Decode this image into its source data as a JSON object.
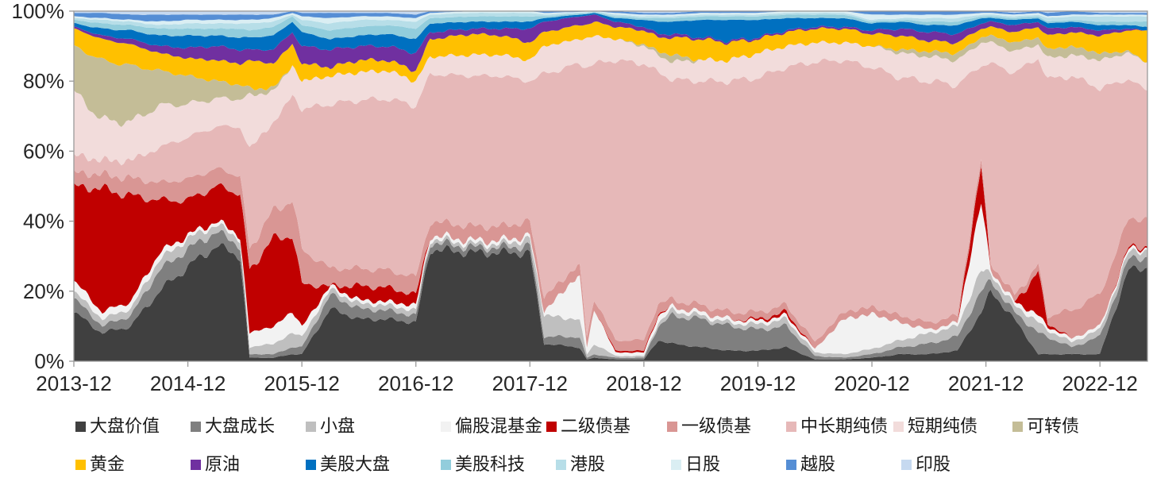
{
  "chart": {
    "y_axis": {
      "ticks": [
        "100%",
        "80%",
        "60%",
        "40%",
        "20%",
        "0%"
      ],
      "min": 0,
      "max": 100
    },
    "x_axis": {
      "ticks": [
        "2013-12",
        "2014-12",
        "2015-12",
        "2016-12",
        "2017-12",
        "2018-12",
        "2019-12",
        "2020-12",
        "2021-12",
        "2022-12"
      ]
    },
    "axis_color": "#9a9a9a",
    "label_color": "#262626"
  },
  "chart_data": {
    "type": "area",
    "stacking": "percent",
    "title": "",
    "xlabel": "",
    "ylabel": "",
    "ylim": [
      0,
      100
    ],
    "y_tick_format": "percent",
    "grid": false,
    "legend_position": "bottom",
    "x_unit": "months since 2013-12",
    "x": [
      0,
      3,
      6,
      9,
      12,
      15,
      17.5,
      18.5,
      21,
      23,
      24,
      27,
      30,
      33,
      36,
      37.5,
      42,
      45,
      48,
      49.5,
      53.2,
      54,
      54.8,
      57,
      60,
      61.5,
      63,
      66,
      69,
      72,
      75,
      78,
      81,
      84,
      87,
      90,
      93,
      95.5,
      96.5,
      99,
      101.5,
      102.5,
      105,
      108,
      111,
      113
    ],
    "x_dates": [
      "2013-12",
      "2014-03",
      "2014-06",
      "2014-09",
      "2014-12",
      "2015-03",
      "2015-05",
      "2015-06",
      "2015-09",
      "2015-11",
      "2015-12",
      "2016-03",
      "2016-06",
      "2016-09",
      "2016-12",
      "2017-01",
      "2017-06",
      "2017-09",
      "2017-12",
      "2018-01",
      "2018-05",
      "2018-06",
      "2018-07",
      "2018-09",
      "2018-12",
      "2019-01",
      "2019-03",
      "2019-06",
      "2019-09",
      "2019-12",
      "2020-03",
      "2020-06",
      "2020-09",
      "2020-12",
      "2021-03",
      "2021-06",
      "2021-09",
      "2021-11",
      "2021-12",
      "2022-03",
      "2022-05",
      "2022-06",
      "2022-09",
      "2022-12",
      "2023-03",
      "2023-05"
    ],
    "series": [
      {
        "name": "大盘价值",
        "color": "#404040",
        "values": [
          14,
          8,
          10,
          20,
          27,
          33,
          30,
          1,
          1,
          2,
          2,
          15,
          12,
          12,
          11,
          32,
          31,
          31,
          31,
          5,
          4,
          0.5,
          1,
          0.5,
          0.5,
          6,
          5,
          4,
          3,
          3,
          4,
          0.5,
          0.5,
          1,
          2,
          2,
          3,
          14,
          20,
          12,
          2,
          2,
          2,
          2,
          26,
          27
        ]
      },
      {
        "name": "大盘成长",
        "color": "#7f7f7f",
        "values": [
          4,
          2,
          3,
          6,
          5,
          4,
          3,
          1,
          1,
          2,
          2,
          4,
          3,
          2.5,
          2,
          2,
          1.5,
          1.5,
          2,
          2,
          3,
          0.5,
          1,
          0.5,
          0.5,
          4,
          8,
          8,
          7,
          6,
          6,
          1,
          0.5,
          1,
          2,
          3,
          4,
          6,
          3,
          2,
          6,
          5,
          2,
          5,
          3,
          3
        ]
      },
      {
        "name": "小盘",
        "color": "#bfbfbf",
        "values": [
          2,
          2,
          2,
          3,
          3,
          2,
          2,
          2,
          3,
          4,
          3,
          1.5,
          1.5,
          1.5,
          1.5,
          1,
          1,
          1,
          2,
          6,
          5,
          1,
          3,
          0.5,
          0.5,
          1,
          1.5,
          1,
          1,
          1.5,
          2,
          1,
          1,
          1.5,
          2,
          3,
          3,
          6,
          2,
          2,
          3,
          2,
          1.5,
          2,
          2,
          2
        ]
      },
      {
        "name": "偏股混基金",
        "color": "#f2f2f2",
        "values": [
          3,
          2,
          2,
          2,
          1,
          1,
          1,
          4,
          5,
          6,
          3,
          1,
          1,
          1,
          1.5,
          1,
          1,
          1,
          1,
          1,
          13,
          2,
          10,
          1,
          1,
          2,
          1,
          1,
          1,
          1,
          1,
          1,
          10,
          10,
          5,
          1,
          1,
          20,
          1,
          1,
          2,
          1,
          1,
          1,
          1,
          0.5
        ]
      },
      {
        "name": "二级债基",
        "color": "#c00000",
        "values": [
          27,
          35,
          30,
          15,
          10,
          10,
          12,
          18,
          25,
          22,
          12,
          0,
          4,
          4,
          3,
          0,
          0,
          0,
          0,
          0,
          0,
          0,
          0,
          0.5,
          0.5,
          0.5,
          0,
          0,
          0,
          0.5,
          1,
          0,
          0,
          0,
          0,
          0,
          0,
          10,
          0,
          0,
          12,
          1,
          0,
          0,
          0.5,
          0.5
        ]
      },
      {
        "name": "一级债基",
        "color": "#d99694",
        "values": [
          4,
          4,
          5,
          5,
          6,
          5,
          5,
          6,
          8,
          10,
          10,
          5,
          5,
          5,
          5,
          4,
          4,
          4,
          4,
          4,
          3,
          3,
          3,
          3,
          3,
          3,
          2,
          2,
          2,
          2,
          2,
          2,
          2,
          2,
          2,
          2,
          2,
          2,
          2,
          2,
          2,
          2,
          8,
          9,
          8,
          8
        ]
      },
      {
        "name": "中长期纯债",
        "color": "#e6b8b8",
        "values": [
          5,
          4,
          5,
          10,
          12,
          12,
          14,
          28.5,
          25,
          30,
          40,
          47,
          48,
          49,
          49,
          42,
          43,
          43,
          40,
          64,
          57,
          77,
          67,
          80,
          79,
          66,
          63,
          64,
          66,
          67,
          68,
          80,
          72,
          68.5,
          68,
          69,
          66,
          26.5,
          57,
          63.5,
          59,
          67.5,
          67,
          59,
          40,
          36.5
        ]
      },
      {
        "name": "短期纯债",
        "color": "#f2dcdb",
        "values": [
          18,
          11.5,
          11,
          12,
          9.5,
          8,
          8,
          15,
          9,
          8.5,
          8,
          8,
          8,
          8,
          7,
          5,
          6,
          6,
          6,
          8,
          7,
          8,
          8,
          6,
          5,
          5,
          5,
          6,
          6,
          7,
          6,
          5.5,
          5,
          6,
          7,
          7,
          7,
          6.5,
          6,
          6,
          4,
          6,
          6,
          8,
          7.5,
          8
        ]
      },
      {
        "name": "可转债",
        "color": "#c4bd97",
        "values": [
          13,
          17,
          16,
          10,
          8,
          5,
          4,
          2,
          1,
          0,
          0,
          0,
          0,
          0,
          0,
          0,
          0,
          0,
          0,
          0,
          0,
          0,
          0,
          0,
          0.5,
          1,
          2,
          0,
          0,
          0,
          0,
          0,
          0,
          0,
          1,
          1.5,
          2,
          1.5,
          2,
          2.5,
          2,
          2.5,
          2.5,
          2,
          0.5,
          0
        ]
      },
      {
        "name": "黄金",
        "color": "#ffc000",
        "values": [
          5,
          6,
          6,
          5,
          5,
          6,
          6,
          8,
          7,
          6,
          5,
          2.5,
          3.5,
          3,
          3,
          5,
          6,
          5.5,
          5,
          4,
          4,
          4,
          4,
          3.5,
          4,
          4,
          5,
          6,
          5,
          4,
          4,
          4,
          4,
          3.5,
          4,
          3,
          3,
          2.5,
          2.5,
          3,
          3,
          4,
          4,
          5,
          6,
          9
        ]
      },
      {
        "name": "原油",
        "color": "#7030a0",
        "values": [
          0.5,
          1,
          1.5,
          2,
          3,
          4,
          4,
          3,
          4,
          3.5,
          5,
          5,
          4,
          4,
          5,
          2,
          1.5,
          2,
          4,
          3,
          2.5,
          2.5,
          2,
          1.5,
          1,
          1,
          1,
          0.5,
          0.5,
          0.5,
          0.5,
          0.5,
          0.5,
          1,
          2,
          2.5,
          2.5,
          1.5,
          1.5,
          2,
          1.5,
          2,
          1.5,
          1.5,
          0.5,
          0
        ]
      },
      {
        "name": "美股大盘",
        "color": "#0070c0",
        "values": [
          1,
          2,
          2.5,
          3,
          3.5,
          3,
          3.5,
          3.5,
          4,
          3,
          4,
          3,
          3,
          3.5,
          4,
          2.5,
          2,
          2,
          2,
          1,
          0.5,
          0.5,
          0.5,
          1,
          2,
          3.5,
          3.5,
          5,
          6,
          5,
          3.5,
          2.5,
          2.5,
          2,
          2,
          2,
          2.5,
          1.5,
          1,
          1.5,
          1,
          1.5,
          1.5,
          1.5,
          1,
          1
        ]
      },
      {
        "name": "美股科技",
        "color": "#92cddc",
        "values": [
          1,
          1.5,
          1.5,
          2,
          2,
          2,
          2.5,
          2,
          2.5,
          1.5,
          2,
          2.5,
          2.5,
          2.5,
          3,
          1.5,
          1.5,
          1.5,
          1.5,
          0.5,
          0.3,
          0.2,
          0.2,
          0.5,
          0.5,
          1,
          1,
          1,
          1,
          1,
          1,
          1,
          1,
          0.5,
          0.5,
          1,
          1,
          0.5,
          0.5,
          0.5,
          0.5,
          0.5,
          0.5,
          1,
          1,
          1.5
        ]
      },
      {
        "name": "港股",
        "color": "#b7dee8",
        "values": [
          0.5,
          1,
          1,
          1,
          1.5,
          1.5,
          1.5,
          2,
          1.5,
          0.5,
          1.5,
          2,
          2,
          1.5,
          2,
          1,
          1,
          1,
          1,
          0.5,
          0.3,
          0.3,
          0.3,
          0.5,
          0.5,
          0.5,
          0.5,
          0.5,
          0.5,
          0.5,
          0.5,
          0.5,
          0.5,
          0.5,
          0.5,
          1,
          1,
          0.5,
          0.5,
          0.5,
          0.5,
          1,
          1,
          1.5,
          1.5,
          1.5
        ]
      },
      {
        "name": "日股",
        "color": "#daeef3",
        "values": [
          0.5,
          0.5,
          0.5,
          1,
          1,
          1,
          1,
          1,
          1,
          0.5,
          1,
          1.5,
          1,
          1,
          1,
          0.5,
          0.5,
          0.5,
          0.5,
          0.5,
          0.2,
          0.2,
          0,
          0.5,
          0.5,
          0.5,
          0.5,
          0.5,
          0.5,
          0.5,
          0.5,
          0.5,
          0.5,
          1.5,
          1,
          1,
          1,
          0.5,
          0.5,
          0.5,
          0.5,
          0.5,
          0.5,
          0.5,
          0.5,
          0.5
        ]
      },
      {
        "name": "越股",
        "color": "#558ed5",
        "values": [
          1,
          1.5,
          1.5,
          2,
          1.5,
          1.5,
          1.5,
          1.5,
          1,
          0.5,
          1,
          1.5,
          1,
          1,
          1,
          0.5,
          0,
          0,
          0,
          0.5,
          0.2,
          0.1,
          0,
          0.5,
          0.5,
          0.5,
          0.5,
          0.5,
          0.5,
          0.5,
          0,
          0,
          0,
          1,
          1,
          1,
          1,
          0.5,
          0.5,
          0.5,
          0.5,
          1,
          1,
          0.5,
          0.5,
          0.5
        ]
      },
      {
        "name": "印股",
        "color": "#c6d9f0",
        "values": [
          0.5,
          0.5,
          1,
          1,
          1,
          1,
          1,
          1,
          1,
          0,
          0.5,
          0.5,
          0.5,
          0.5,
          1,
          0,
          0,
          0,
          0,
          0,
          0,
          0,
          0,
          0,
          0.5,
          0.5,
          0.5,
          0,
          0,
          0,
          0,
          0,
          0,
          0,
          0,
          0,
          0,
          0,
          0,
          0.5,
          0,
          0.5,
          0,
          0.5,
          0.5,
          0.5
        ]
      }
    ]
  }
}
